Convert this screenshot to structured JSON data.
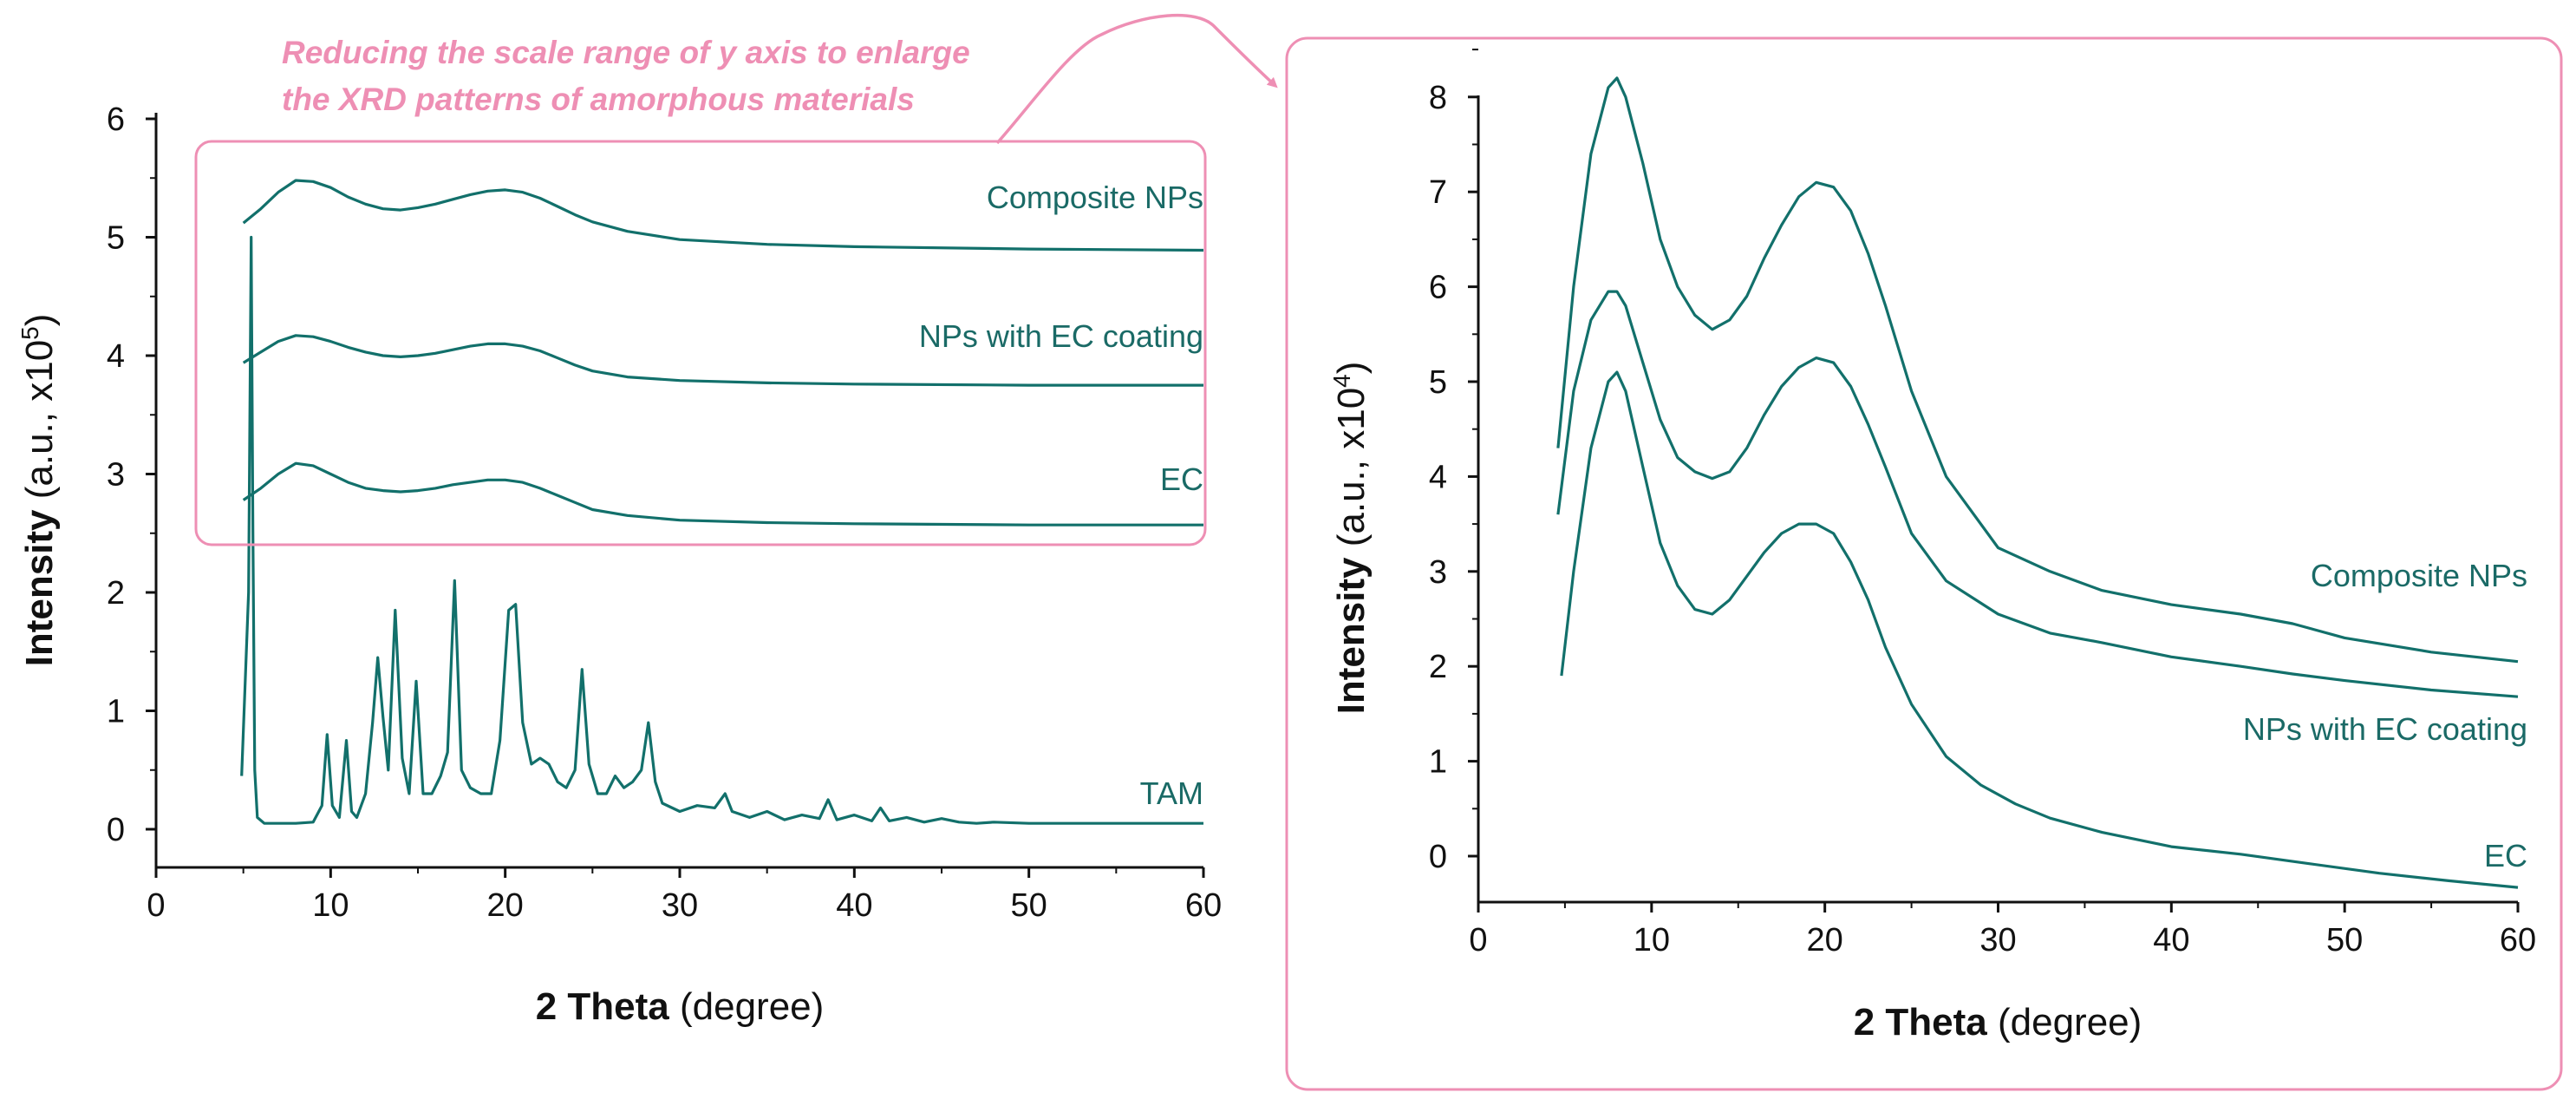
{
  "colors": {
    "line": "#12706b",
    "highlight": "#ee8fb4",
    "axis": "#111111"
  },
  "annotation": {
    "line1": "Reducing the scale range of y axis to enlarge",
    "line2": "the XRD patterns of amorphous materials"
  },
  "chart_data": [
    {
      "type": "line",
      "panel": "left",
      "title": "",
      "xlabel_bold": "2 Theta",
      "xlabel_rest": " (degree)",
      "ylabel_bold": "Intensity",
      "ylabel_rest": " (a.u., x10",
      "ylabel_exp": "5",
      "ylabel_close": ")",
      "xlim": [
        0,
        60
      ],
      "ylim": [
        -0.5,
        6
      ],
      "xticks": [
        "0",
        "10",
        "20",
        "30",
        "40",
        "50",
        "60"
      ],
      "yticks": [
        "0",
        "1",
        "2",
        "3",
        "4",
        "5",
        "6"
      ],
      "series": [
        {
          "name": "Composite NPs",
          "label": "Composite NPs",
          "x": [
            5,
            6,
            7,
            8,
            9,
            10,
            11,
            12,
            13,
            14,
            15,
            16,
            17,
            18,
            19,
            20,
            21,
            22,
            23,
            24,
            25,
            27,
            30,
            35,
            40,
            50,
            60
          ],
          "y": [
            5.12,
            5.24,
            5.38,
            5.48,
            5.47,
            5.42,
            5.34,
            5.28,
            5.24,
            5.23,
            5.25,
            5.28,
            5.32,
            5.36,
            5.39,
            5.4,
            5.38,
            5.33,
            5.26,
            5.19,
            5.13,
            5.05,
            4.98,
            4.94,
            4.92,
            4.9,
            4.89
          ]
        },
        {
          "name": "NPs with EC coating",
          "label": "NPs with EC coating",
          "x": [
            5,
            6,
            7,
            8,
            9,
            10,
            11,
            12,
            13,
            14,
            15,
            16,
            17,
            18,
            19,
            20,
            21,
            22,
            23,
            24,
            25,
            27,
            30,
            35,
            40,
            50,
            60
          ],
          "y": [
            3.94,
            4.03,
            4.12,
            4.17,
            4.16,
            4.12,
            4.07,
            4.03,
            4.0,
            3.99,
            4.0,
            4.02,
            4.05,
            4.08,
            4.1,
            4.1,
            4.08,
            4.04,
            3.98,
            3.92,
            3.87,
            3.82,
            3.79,
            3.77,
            3.76,
            3.75,
            3.75
          ]
        },
        {
          "name": "EC",
          "label": "EC",
          "x": [
            5,
            6,
            7,
            8,
            9,
            10,
            11,
            12,
            13,
            14,
            15,
            16,
            17,
            18,
            19,
            20,
            21,
            22,
            23,
            24,
            25,
            27,
            30,
            35,
            40,
            50,
            60
          ],
          "y": [
            2.78,
            2.88,
            3.0,
            3.09,
            3.07,
            3.0,
            2.93,
            2.88,
            2.86,
            2.85,
            2.86,
            2.88,
            2.91,
            2.93,
            2.95,
            2.95,
            2.93,
            2.88,
            2.82,
            2.76,
            2.7,
            2.65,
            2.61,
            2.59,
            2.58,
            2.57,
            2.57
          ]
        },
        {
          "name": "TAM",
          "label": "TAM",
          "x": [
            4.9,
            5.3,
            5.45,
            5.55,
            5.65,
            5.8,
            6.2,
            7,
            8,
            9,
            9.5,
            9.8,
            10.1,
            10.5,
            10.9,
            11.2,
            11.5,
            12,
            12.4,
            12.7,
            13,
            13.3,
            13.7,
            14.1,
            14.5,
            14.9,
            15.3,
            15.8,
            16.3,
            16.7,
            17.1,
            17.5,
            18,
            18.6,
            19.2,
            19.7,
            20.2,
            20.6,
            21,
            21.5,
            22,
            22.5,
            23,
            23.5,
            24,
            24.4,
            24.8,
            25.3,
            25.8,
            26.3,
            26.8,
            27.3,
            27.8,
            28.2,
            28.6,
            29,
            30,
            31,
            32,
            32.6,
            33,
            34,
            35,
            36,
            37,
            38,
            38.5,
            39,
            40,
            41,
            41.5,
            42,
            43,
            44,
            45,
            46,
            47,
            48,
            50,
            52,
            55,
            60
          ],
          "y": [
            0.45,
            2.0,
            5.0,
            2.5,
            0.5,
            0.1,
            0.05,
            0.05,
            0.05,
            0.06,
            0.2,
            0.8,
            0.2,
            0.1,
            0.75,
            0.15,
            0.1,
            0.3,
            0.9,
            1.45,
            0.95,
            0.5,
            1.85,
            0.6,
            0.3,
            1.25,
            0.3,
            0.3,
            0.45,
            0.65,
            2.1,
            0.5,
            0.35,
            0.3,
            0.3,
            0.75,
            1.85,
            1.9,
            0.9,
            0.55,
            0.6,
            0.55,
            0.4,
            0.35,
            0.5,
            1.35,
            0.55,
            0.3,
            0.3,
            0.45,
            0.35,
            0.4,
            0.5,
            0.9,
            0.4,
            0.22,
            0.15,
            0.2,
            0.18,
            0.3,
            0.15,
            0.1,
            0.15,
            0.08,
            0.12,
            0.09,
            0.25,
            0.08,
            0.12,
            0.07,
            0.18,
            0.07,
            0.1,
            0.06,
            0.09,
            0.06,
            0.05,
            0.06,
            0.05,
            0.05,
            0.05,
            0.05
          ]
        }
      ]
    },
    {
      "type": "line",
      "panel": "right",
      "title": "",
      "xlabel_bold": "2 Theta",
      "xlabel_rest": " (degree)",
      "ylabel_bold": "Intensity",
      "ylabel_rest": " (a.u., x10",
      "ylabel_exp": "4",
      "ylabel_close": ")",
      "xlim": [
        0,
        60
      ],
      "ylim": [
        -0.5,
        8.5
      ],
      "xticks": [
        "0",
        "10",
        "20",
        "30",
        "40",
        "50",
        "60"
      ],
      "yticks": [
        "0",
        "1",
        "2",
        "3",
        "4",
        "5",
        "6",
        "7",
        "8"
      ],
      "series": [
        {
          "name": "Composite NPs",
          "label": "Composite NPs",
          "x": [
            4.6,
            5.5,
            6.5,
            7.5,
            8,
            8.5,
            9.5,
            10.5,
            11.5,
            12.5,
            13.5,
            14.5,
            15.5,
            16.5,
            17.5,
            18.5,
            19.5,
            20.5,
            21.5,
            22.5,
            23.5,
            25,
            27,
            30,
            33,
            36,
            40,
            44,
            47,
            50,
            55,
            60
          ],
          "y": [
            4.3,
            6.0,
            7.4,
            8.1,
            8.2,
            8.0,
            7.3,
            6.5,
            6.0,
            5.7,
            5.55,
            5.65,
            5.9,
            6.3,
            6.65,
            6.95,
            7.1,
            7.05,
            6.8,
            6.35,
            5.8,
            4.9,
            4.0,
            3.25,
            3.0,
            2.8,
            2.65,
            2.55,
            2.45,
            2.3,
            2.15,
            2.05
          ]
        },
        {
          "name": "NPs with EC coating",
          "label": "NPs with EC coating",
          "x": [
            4.6,
            5.5,
            6.5,
            7.5,
            8,
            8.5,
            9.5,
            10.5,
            11.5,
            12.5,
            13.5,
            14.5,
            15.5,
            16.5,
            17.5,
            18.5,
            19.5,
            20.5,
            21.5,
            22.5,
            23.5,
            25,
            27,
            30,
            33,
            36,
            40,
            44,
            47,
            50,
            55,
            60
          ],
          "y": [
            3.6,
            4.9,
            5.65,
            5.95,
            5.95,
            5.8,
            5.2,
            4.6,
            4.2,
            4.05,
            3.98,
            4.05,
            4.3,
            4.65,
            4.95,
            5.15,
            5.25,
            5.2,
            4.95,
            4.55,
            4.1,
            3.4,
            2.9,
            2.55,
            2.35,
            2.25,
            2.1,
            2.0,
            1.92,
            1.85,
            1.75,
            1.68
          ]
        },
        {
          "name": "EC",
          "label": "EC",
          "x": [
            4.8,
            5.5,
            6.5,
            7.5,
            8,
            8.5,
            9.5,
            10.5,
            11.5,
            12.5,
            13.5,
            14.5,
            15.5,
            16.5,
            17.5,
            18.5,
            19.5,
            20.5,
            21.5,
            22.5,
            23.5,
            25,
            27,
            29,
            31,
            33,
            36,
            40,
            44,
            48,
            52,
            56,
            60
          ],
          "y": [
            1.9,
            3.0,
            4.3,
            5.0,
            5.1,
            4.9,
            4.1,
            3.3,
            2.85,
            2.6,
            2.55,
            2.7,
            2.95,
            3.2,
            3.4,
            3.5,
            3.5,
            3.4,
            3.1,
            2.7,
            2.2,
            1.6,
            1.05,
            0.75,
            0.55,
            0.4,
            0.25,
            0.1,
            0.02,
            -0.08,
            -0.18,
            -0.26,
            -0.33
          ]
        }
      ]
    }
  ]
}
